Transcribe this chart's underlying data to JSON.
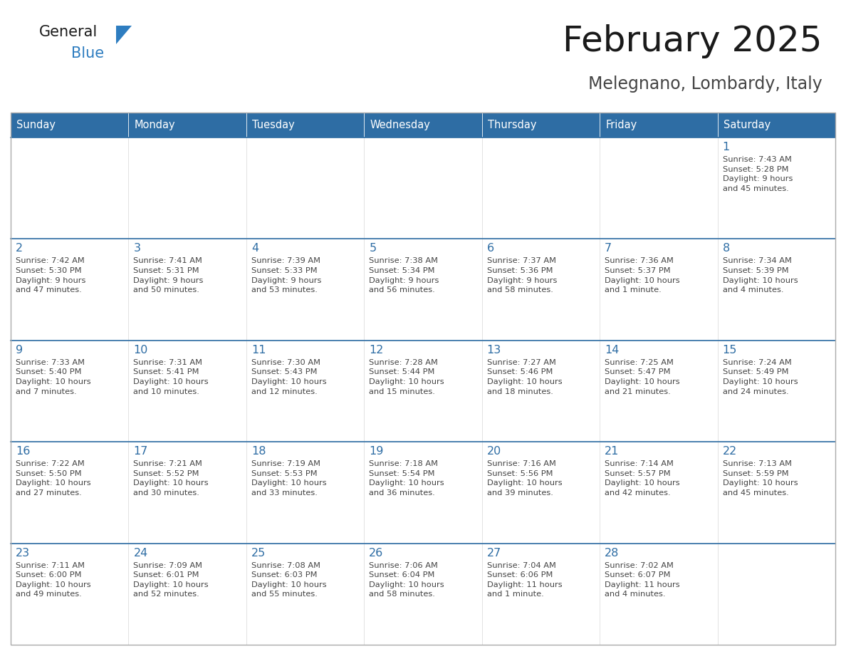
{
  "title": "February 2025",
  "subtitle": "Melegnano, Lombardy, Italy",
  "header_bg": "#2E6DA4",
  "header_text": "#FFFFFF",
  "cell_bg": "#FFFFFF",
  "cell_bg_alt": "#F5F5F5",
  "day_number_color": "#2E6DA4",
  "text_color": "#444444",
  "row_border_color": "#2E6DA4",
  "outer_border_color": "#CCCCCC",
  "days_of_week": [
    "Sunday",
    "Monday",
    "Tuesday",
    "Wednesday",
    "Thursday",
    "Friday",
    "Saturday"
  ],
  "weeks": [
    [
      {
        "day": null,
        "info": null
      },
      {
        "day": null,
        "info": null
      },
      {
        "day": null,
        "info": null
      },
      {
        "day": null,
        "info": null
      },
      {
        "day": null,
        "info": null
      },
      {
        "day": null,
        "info": null
      },
      {
        "day": 1,
        "info": "Sunrise: 7:43 AM\nSunset: 5:28 PM\nDaylight: 9 hours\nand 45 minutes."
      }
    ],
    [
      {
        "day": 2,
        "info": "Sunrise: 7:42 AM\nSunset: 5:30 PM\nDaylight: 9 hours\nand 47 minutes."
      },
      {
        "day": 3,
        "info": "Sunrise: 7:41 AM\nSunset: 5:31 PM\nDaylight: 9 hours\nand 50 minutes."
      },
      {
        "day": 4,
        "info": "Sunrise: 7:39 AM\nSunset: 5:33 PM\nDaylight: 9 hours\nand 53 minutes."
      },
      {
        "day": 5,
        "info": "Sunrise: 7:38 AM\nSunset: 5:34 PM\nDaylight: 9 hours\nand 56 minutes."
      },
      {
        "day": 6,
        "info": "Sunrise: 7:37 AM\nSunset: 5:36 PM\nDaylight: 9 hours\nand 58 minutes."
      },
      {
        "day": 7,
        "info": "Sunrise: 7:36 AM\nSunset: 5:37 PM\nDaylight: 10 hours\nand 1 minute."
      },
      {
        "day": 8,
        "info": "Sunrise: 7:34 AM\nSunset: 5:39 PM\nDaylight: 10 hours\nand 4 minutes."
      }
    ],
    [
      {
        "day": 9,
        "info": "Sunrise: 7:33 AM\nSunset: 5:40 PM\nDaylight: 10 hours\nand 7 minutes."
      },
      {
        "day": 10,
        "info": "Sunrise: 7:31 AM\nSunset: 5:41 PM\nDaylight: 10 hours\nand 10 minutes."
      },
      {
        "day": 11,
        "info": "Sunrise: 7:30 AM\nSunset: 5:43 PM\nDaylight: 10 hours\nand 12 minutes."
      },
      {
        "day": 12,
        "info": "Sunrise: 7:28 AM\nSunset: 5:44 PM\nDaylight: 10 hours\nand 15 minutes."
      },
      {
        "day": 13,
        "info": "Sunrise: 7:27 AM\nSunset: 5:46 PM\nDaylight: 10 hours\nand 18 minutes."
      },
      {
        "day": 14,
        "info": "Sunrise: 7:25 AM\nSunset: 5:47 PM\nDaylight: 10 hours\nand 21 minutes."
      },
      {
        "day": 15,
        "info": "Sunrise: 7:24 AM\nSunset: 5:49 PM\nDaylight: 10 hours\nand 24 minutes."
      }
    ],
    [
      {
        "day": 16,
        "info": "Sunrise: 7:22 AM\nSunset: 5:50 PM\nDaylight: 10 hours\nand 27 minutes."
      },
      {
        "day": 17,
        "info": "Sunrise: 7:21 AM\nSunset: 5:52 PM\nDaylight: 10 hours\nand 30 minutes."
      },
      {
        "day": 18,
        "info": "Sunrise: 7:19 AM\nSunset: 5:53 PM\nDaylight: 10 hours\nand 33 minutes."
      },
      {
        "day": 19,
        "info": "Sunrise: 7:18 AM\nSunset: 5:54 PM\nDaylight: 10 hours\nand 36 minutes."
      },
      {
        "day": 20,
        "info": "Sunrise: 7:16 AM\nSunset: 5:56 PM\nDaylight: 10 hours\nand 39 minutes."
      },
      {
        "day": 21,
        "info": "Sunrise: 7:14 AM\nSunset: 5:57 PM\nDaylight: 10 hours\nand 42 minutes."
      },
      {
        "day": 22,
        "info": "Sunrise: 7:13 AM\nSunset: 5:59 PM\nDaylight: 10 hours\nand 45 minutes."
      }
    ],
    [
      {
        "day": 23,
        "info": "Sunrise: 7:11 AM\nSunset: 6:00 PM\nDaylight: 10 hours\nand 49 minutes."
      },
      {
        "day": 24,
        "info": "Sunrise: 7:09 AM\nSunset: 6:01 PM\nDaylight: 10 hours\nand 52 minutes."
      },
      {
        "day": 25,
        "info": "Sunrise: 7:08 AM\nSunset: 6:03 PM\nDaylight: 10 hours\nand 55 minutes."
      },
      {
        "day": 26,
        "info": "Sunrise: 7:06 AM\nSunset: 6:04 PM\nDaylight: 10 hours\nand 58 minutes."
      },
      {
        "day": 27,
        "info": "Sunrise: 7:04 AM\nSunset: 6:06 PM\nDaylight: 11 hours\nand 1 minute."
      },
      {
        "day": 28,
        "info": "Sunrise: 7:02 AM\nSunset: 6:07 PM\nDaylight: 11 hours\nand 4 minutes."
      },
      {
        "day": null,
        "info": null
      }
    ]
  ],
  "logo_general_color": "#1A1A1A",
  "logo_blue_color": "#2E7DC0",
  "logo_triangle_color": "#2E7DC0"
}
